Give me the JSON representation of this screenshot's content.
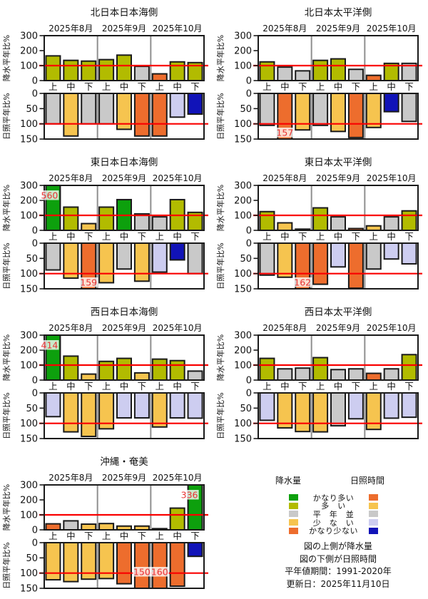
{
  "legend": {
    "precip_title": "降水量",
    "sunshine_title": "日照時間",
    "rows": [
      {
        "label": "かなり多い",
        "precip": "green",
        "sunshine": "orange"
      },
      {
        "label": "多　い",
        "precip": "yellowgreen",
        "sunshine": "yellow"
      },
      {
        "label": "平　年　並",
        "precip": "gray",
        "sunshine": "gray"
      },
      {
        "label": "少　な　い",
        "precip": "yellow",
        "sunshine": "lavender"
      },
      {
        "label": "かなり少ない",
        "precip": "orange",
        "sunshine": "blue"
      }
    ],
    "notes": [
      "図の上側が降水量",
      "図の下側が日照時間",
      "平年値期間：1991-2020年",
      "更新日：2025年11月10日"
    ]
  },
  "chart_data": {
    "type": "bar",
    "description": "Ten-day period (上/中/下) ratios to climatological normal, precipitation (top, 0-300%) and sunshine duration (bottom, inverted 0-150%), reference line at 100%",
    "months": [
      "2025年8月",
      "2025年9月",
      "2025年10月"
    ],
    "categories": [
      "上",
      "中",
      "下",
      "上",
      "中",
      "下",
      "上",
      "中",
      "下"
    ],
    "palette": {
      "green": "#0DA00D",
      "yellowgreen": "#B2BB00",
      "gray": "#C9C9C9",
      "yellow": "#F6C44F",
      "orange": "#ED6D2D",
      "lavender": "#CDCDF0",
      "blue": "#1113B8"
    },
    "axes": {
      "precip": {
        "ylabel": "降水平年比%",
        "ylim": [
          0,
          300
        ],
        "yticks": [
          0,
          100,
          200,
          300
        ],
        "ref": 100,
        "inverted": false
      },
      "sunshine": {
        "ylabel": "日照平年比%",
        "ylim": [
          0,
          150
        ],
        "yticks": [
          0,
          50,
          100,
          150
        ],
        "ref": 100,
        "inverted": true
      }
    },
    "panels": [
      {
        "title": "北日本日本海側",
        "precip": {
          "values": [
            165,
            135,
            130,
            140,
            170,
            95,
            45,
            125,
            120
          ],
          "colors": [
            "yellowgreen",
            "yellowgreen",
            "yellowgreen",
            "yellowgreen",
            "yellowgreen",
            "gray",
            "orange",
            "yellowgreen",
            "yellowgreen"
          ],
          "value_labels": []
        },
        "sunshine": {
          "values": [
            100,
            140,
            100,
            100,
            118,
            140,
            140,
            78,
            68
          ],
          "colors": [
            "gray",
            "yellow",
            "gray",
            "gray",
            "yellow",
            "orange",
            "orange",
            "lavender",
            "blue"
          ],
          "value_labels": []
        }
      },
      {
        "title": "北日本太平洋側",
        "precip": {
          "values": [
            125,
            90,
            65,
            135,
            145,
            75,
            35,
            115,
            115
          ],
          "colors": [
            "yellowgreen",
            "gray",
            "gray",
            "yellowgreen",
            "yellowgreen",
            "gray",
            "orange",
            "yellowgreen",
            "gray"
          ],
          "value_labels": []
        },
        "sunshine": {
          "values": [
            105,
            157,
            120,
            105,
            125,
            145,
            112,
            60,
            92
          ],
          "colors": [
            "gray",
            "orange",
            "yellow",
            "gray",
            "yellow",
            "orange",
            "yellow",
            "blue",
            "gray"
          ],
          "value_labels": [
            {
              "i": 1,
              "text": "157"
            }
          ]
        }
      },
      {
        "title": "東日本日本海側",
        "precip": {
          "values": [
            560,
            155,
            45,
            155,
            205,
            110,
            90,
            205,
            120
          ],
          "colors": [
            "green",
            "yellowgreen",
            "yellow",
            "yellowgreen",
            "green",
            "gray",
            "gray",
            "yellowgreen",
            "yellowgreen"
          ],
          "value_labels": [
            {
              "i": 0,
              "text": "560",
              "dx": -5
            }
          ]
        },
        "sunshine": {
          "values": [
            88,
            115,
            159,
            130,
            85,
            125,
            95,
            55,
            100
          ],
          "colors": [
            "gray",
            "yellow",
            "orange",
            "yellow",
            "gray",
            "yellow",
            "lavender",
            "blue",
            "gray"
          ],
          "value_labels": [
            {
              "i": 2,
              "text": "159"
            }
          ]
        }
      },
      {
        "title": "東日本太平洋側",
        "precip": {
          "values": [
            125,
            50,
            8,
            150,
            90,
            12,
            30,
            90,
            130
          ],
          "colors": [
            "yellowgreen",
            "yellow",
            "orange",
            "yellowgreen",
            "gray",
            "orange",
            "yellow",
            "gray",
            "yellowgreen"
          ],
          "value_labels": []
        },
        "sunshine": {
          "values": [
            105,
            112,
            162,
            135,
            78,
            148,
            85,
            52,
            68
          ],
          "colors": [
            "gray",
            "yellow",
            "orange",
            "orange",
            "lavender",
            "orange",
            "gray",
            "lavender",
            "lavender"
          ],
          "value_labels": [
            {
              "i": 2,
              "text": "162"
            }
          ]
        }
      },
      {
        "title": "西日本日本海側",
        "precip": {
          "values": [
            414,
            160,
            40,
            125,
            145,
            48,
            140,
            130,
            60
          ],
          "colors": [
            "green",
            "yellowgreen",
            "yellow",
            "yellowgreen",
            "yellowgreen",
            "yellow",
            "yellowgreen",
            "yellowgreen",
            "gray"
          ],
          "value_labels": [
            {
              "i": 0,
              "text": "414",
              "dx": -5
            }
          ]
        },
        "sunshine": {
          "values": [
            78,
            128,
            143,
            118,
            82,
            82,
            112,
            82,
            83
          ],
          "colors": [
            "lavender",
            "yellow",
            "yellow",
            "yellow",
            "lavender",
            "lavender",
            "yellow",
            "lavender",
            "lavender"
          ],
          "value_labels": []
        }
      },
      {
        "title": "西日本太平洋側",
        "precip": {
          "values": [
            145,
            75,
            80,
            150,
            70,
            75,
            45,
            75,
            170
          ],
          "colors": [
            "yellowgreen",
            "gray",
            "gray",
            "yellowgreen",
            "gray",
            "gray",
            "orange",
            "gray",
            "yellowgreen"
          ],
          "value_labels": []
        },
        "sunshine": {
          "values": [
            90,
            115,
            127,
            128,
            108,
            85,
            120,
            83,
            80
          ],
          "colors": [
            "lavender",
            "yellow",
            "yellow",
            "yellow",
            "gray",
            "lavender",
            "yellow",
            "lavender",
            "lavender"
          ],
          "value_labels": []
        }
      },
      {
        "title": "沖縄・奄美",
        "precip": {
          "values": [
            40,
            60,
            38,
            42,
            25,
            25,
            8,
            145,
            336
          ],
          "colors": [
            "orange",
            "gray",
            "yellow",
            "yellow",
            "yellow",
            "yellow",
            "orange",
            "yellowgreen",
            "green"
          ],
          "value_labels": [
            {
              "i": 8,
              "text": "336",
              "dx": -8
            }
          ]
        },
        "sunshine": {
          "values": [
            122,
            128,
            120,
            118,
            135,
            150,
            160,
            143,
            45
          ],
          "colors": [
            "yellow",
            "yellow",
            "yellow",
            "yellow",
            "orange",
            "orange",
            "orange",
            "orange",
            "blue"
          ],
          "value_labels": [
            {
              "i": 5,
              "text": "150",
              "dy": -14
            },
            {
              "i": 6,
              "text": "160",
              "dy": -14
            }
          ]
        }
      }
    ]
  }
}
